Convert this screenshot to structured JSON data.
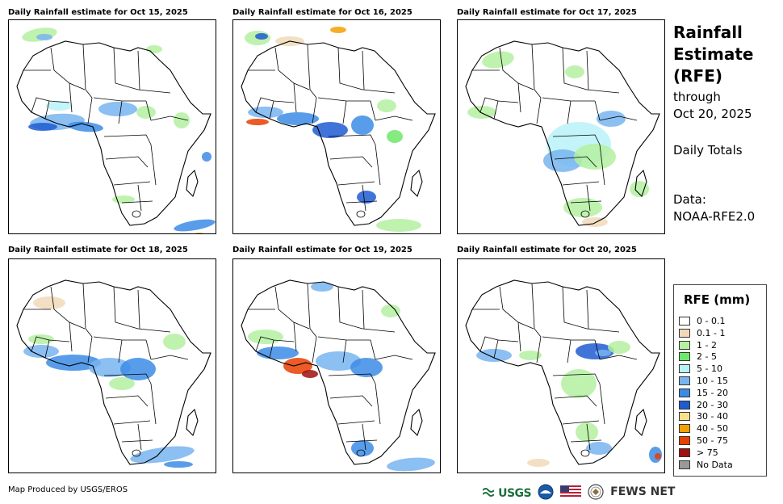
{
  "map_data": {
    "panels": [
      {
        "title": "Daily Rainfall estimate for Oct 15, 2025",
        "date": "Oct 15, 2025"
      },
      {
        "title": "Daily Rainfall estimate for Oct 16, 2025",
        "date": "Oct 16, 2025"
      },
      {
        "title": "Daily Rainfall estimate for Oct 17, 2025",
        "date": "Oct 17, 2025"
      },
      {
        "title": "Daily Rainfall estimate for Oct 18, 2025",
        "date": "Oct 18, 2025"
      },
      {
        "title": "Daily Rainfall estimate for Oct 19, 2025",
        "date": "Oct 19, 2025"
      },
      {
        "title": "Daily Rainfall estimate for Oct 20, 2025",
        "date": "Oct 20, 2025"
      }
    ]
  },
  "side": {
    "title_lines": [
      "Rainfall",
      "Estimate",
      "(RFE)"
    ],
    "through": "through",
    "end_date": "Oct 20, 2025",
    "totals": "Daily Totals",
    "data_label": "Data:",
    "data_source": "NOAA-RFE2.0"
  },
  "legend": {
    "title": "RFE (mm)",
    "items": [
      {
        "label": "0 - 0.1",
        "color": "#ffffff"
      },
      {
        "label": "0.1 - 1",
        "color": "#f1d9b8"
      },
      {
        "label": "1 - 2",
        "color": "#b4f0a0"
      },
      {
        "label": "2 - 5",
        "color": "#6ee86a"
      },
      {
        "label": "5 - 10",
        "color": "#b8f2f8"
      },
      {
        "label": "10 - 15",
        "color": "#78b4f0"
      },
      {
        "label": "15 - 20",
        "color": "#3c8ce6"
      },
      {
        "label": "20 - 30",
        "color": "#1e5cd2"
      },
      {
        "label": "30 - 40",
        "color": "#f8e08c"
      },
      {
        "label": "40 - 50",
        "color": "#f5a000"
      },
      {
        "label": "50 - 75",
        "color": "#e84000"
      },
      {
        "label": "> 75",
        "color": "#a01010"
      },
      {
        "label": "No Data",
        "color": "#999999"
      }
    ]
  },
  "footer": {
    "credit": "Map Produced by USGS/EROS",
    "usgs": "USGS",
    "fews": "FEWS NET"
  }
}
